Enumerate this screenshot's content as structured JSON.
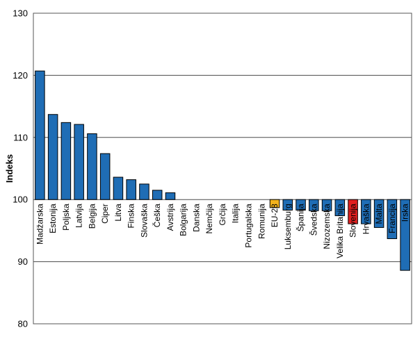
{
  "chart_data": {
    "type": "bar",
    "ylabel": "Indeks",
    "xlabel": "",
    "title": "",
    "ylim": [
      80,
      130
    ],
    "yticks": [
      80,
      90,
      100,
      110,
      120,
      130
    ],
    "baseline": 100,
    "grid": true,
    "legend": "none",
    "categories": [
      "Madžarska",
      "Estonija",
      "Poljska",
      "Latvija",
      "Belgija",
      "Ciper",
      "Litva",
      "Finska",
      "Slovaška",
      "Češka",
      "Avstrija",
      "Bolgarija",
      "Danska",
      "Nemčija",
      "Grčija",
      "Italija",
      "Portugalska",
      "Romunija",
      "EU-28",
      "Luksemburg",
      "Španija",
      "Švedska",
      "Nizozemska",
      "Velika Britanija",
      "Slovenija",
      "Hrvaška",
      "Malta",
      "Francija",
      "Irska"
    ],
    "values": [
      120.7,
      113.7,
      112.4,
      112.1,
      110.6,
      107.4,
      103.6,
      103.2,
      102.5,
      101.5,
      101.1,
      100,
      100,
      100,
      100,
      100,
      100,
      100,
      98.7,
      98.3,
      98.3,
      98.2,
      98.2,
      97.4,
      96.1,
      96.1,
      95.5,
      93.7,
      88.6
    ],
    "colors": [
      "#1F6DB5",
      "#1F6DB5",
      "#1F6DB5",
      "#1F6DB5",
      "#1F6DB5",
      "#1F6DB5",
      "#1F6DB5",
      "#1F6DB5",
      "#1F6DB5",
      "#1F6DB5",
      "#1F6DB5",
      "#1F6DB5",
      "#1F6DB5",
      "#1F6DB5",
      "#1F6DB5",
      "#1F6DB5",
      "#1F6DB5",
      "#1F6DB5",
      "#F2B21C",
      "#1F6DB5",
      "#1F6DB5",
      "#1F6DB5",
      "#1F6DB5",
      "#1F6DB5",
      "#E02020",
      "#1F6DB5",
      "#1F6DB5",
      "#1F6DB5",
      "#1F6DB5"
    ]
  }
}
